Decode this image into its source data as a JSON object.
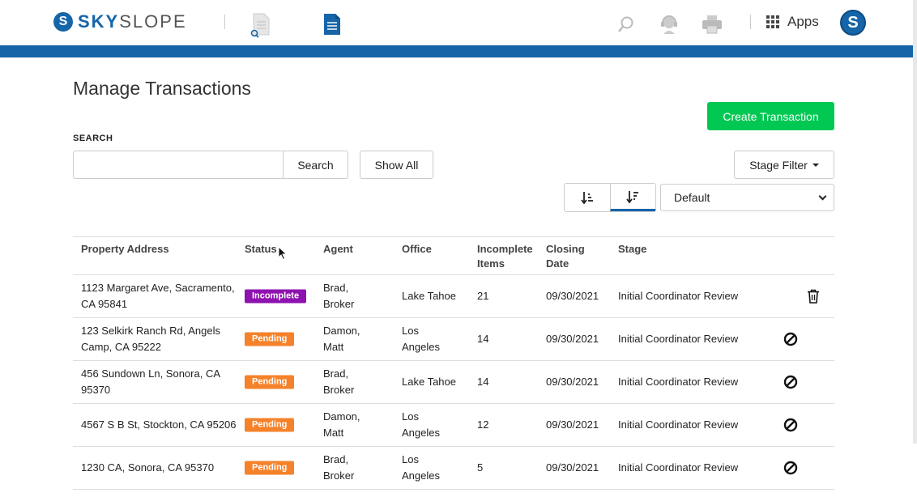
{
  "header": {
    "logo_initial": "S",
    "logo_text_sky": "SKY",
    "logo_text_slope": "SLOPE",
    "apps_label": "Apps",
    "avatar_initial": "S",
    "brand_color": "#1565a8"
  },
  "page": {
    "title": "Manage Transactions",
    "create_button": "Create Transaction",
    "search_label": "SEARCH",
    "search_value": "",
    "search_button": "Search",
    "show_all_button": "Show All",
    "stage_filter_button": "Stage Filter",
    "sort_select_value": "Default"
  },
  "table": {
    "columns": [
      "Property Address",
      "Status",
      "Agent",
      "Office",
      "Incomplete\nItems",
      "Closing\nDate",
      "Stage"
    ],
    "rows": [
      {
        "address": "1123 Margaret Ave, Sacramento, CA 95841",
        "status": "Incomplete",
        "status_type": "incomplete",
        "agent": "Brad, Broker",
        "office": "Lake Tahoe",
        "items": "21",
        "date": "09/30/2021",
        "stage": "Initial Coordinator Review",
        "action": "trash"
      },
      {
        "address": "123 Selkirk Ranch Rd, Angels Camp, CA 95222",
        "status": "Pending",
        "status_type": "pending",
        "agent": "Damon, Matt",
        "office": "Los Angeles",
        "items": "14",
        "date": "09/30/2021",
        "stage": "Initial Coordinator Review",
        "action": "block"
      },
      {
        "address": "456 Sundown Ln, Sonora, CA 95370",
        "status": "Pending",
        "status_type": "pending",
        "agent": "Brad, Broker",
        "office": "Lake Tahoe",
        "items": "14",
        "date": "09/30/2021",
        "stage": "Initial Coordinator Review",
        "action": "block"
      },
      {
        "address": "4567 S B St, Stockton, CA 95206",
        "status": "Pending",
        "status_type": "pending",
        "agent": "Damon, Matt",
        "office": "Los Angeles",
        "items": "12",
        "date": "09/30/2021",
        "stage": "Initial Coordinator Review",
        "action": "block"
      },
      {
        "address": "1230 CA, Sonora, CA 95370",
        "status": "Pending",
        "status_type": "pending",
        "agent": "Brad, Broker",
        "office": "Los Angeles",
        "items": "5",
        "date": "09/30/2021",
        "stage": "Initial Coordinator Review",
        "action": "block"
      }
    ]
  },
  "colors": {
    "status_incomplete": "#8e12b0",
    "status_pending": "#f5822a",
    "create_button": "#00c853"
  },
  "icons": {
    "document_search": "document-search-icon",
    "document": "document-icon",
    "search": "search-icon",
    "support": "support-icon",
    "print": "print-icon",
    "apps": "apps-grid-icon",
    "sort_asc": "sort-ascending-icon",
    "sort_desc": "sort-descending-icon",
    "trash": "trash-icon",
    "block": "block-icon"
  }
}
